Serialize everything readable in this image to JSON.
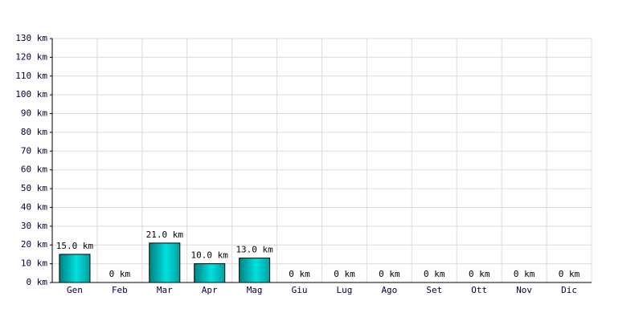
{
  "chart_data": {
    "type": "bar",
    "categories": [
      "Gen",
      "Feb",
      "Mar",
      "Apr",
      "Mag",
      "Giu",
      "Lug",
      "Ago",
      "Set",
      "Ott",
      "Nov",
      "Dic"
    ],
    "values": [
      15,
      0,
      21,
      10,
      13,
      0,
      0,
      0,
      0,
      0,
      0,
      0
    ],
    "value_labels": [
      "15.0 km",
      "0 km",
      "21.0 km",
      "10.0 km",
      "13.0 km",
      "0 km",
      "0 km",
      "0 km",
      "0 km",
      "0 km",
      "0 km",
      "0 km"
    ],
    "color": "#00e0e0",
    "ylim": [
      0,
      130
    ],
    "yticks": [
      {
        "value": 0,
        "label": "0 km"
      },
      {
        "value": 10,
        "label": "10 km"
      },
      {
        "value": 20,
        "label": "20 km"
      },
      {
        "value": 30,
        "label": "30 km"
      },
      {
        "value": 40,
        "label": "40 km"
      },
      {
        "value": 50,
        "label": "50 km"
      },
      {
        "value": 60,
        "label": "60 km"
      },
      {
        "value": 70,
        "label": "70 km"
      },
      {
        "value": 80,
        "label": "80 km"
      },
      {
        "value": 90,
        "label": "90 km"
      },
      {
        "value": 100,
        "label": "100 km"
      },
      {
        "value": 110,
        "label": "110 km"
      },
      {
        "value": 120,
        "label": "120 km"
      },
      {
        "value": 130,
        "label": "130 km"
      }
    ],
    "grid": true
  }
}
